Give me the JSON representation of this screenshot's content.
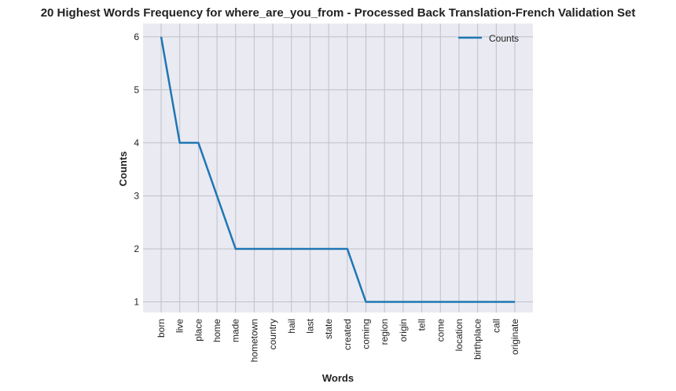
{
  "chart_data": {
    "type": "line",
    "title": "20 Highest Words Frequency for where_are_you_from - Processed Back Translation-French Validation Set",
    "xlabel": "Words",
    "ylabel": "Counts",
    "categories": [
      "born",
      "live",
      "place",
      "home",
      "made",
      "hometown",
      "country",
      "hail",
      "last",
      "state",
      "created",
      "coming",
      "region",
      "origin",
      "tell",
      "come",
      "location",
      "birthplace",
      "call",
      "originate"
    ],
    "series": [
      {
        "name": "Counts",
        "values": [
          6,
          4,
          4,
          3,
          2,
          2,
          2,
          2,
          2,
          2,
          2,
          1,
          1,
          1,
          1,
          1,
          1,
          1,
          1,
          1
        ],
        "color": "#1f77b4"
      }
    ],
    "yticks": [
      1,
      2,
      3,
      4,
      5,
      6
    ],
    "ylim": [
      0.8,
      6.25
    ],
    "grid": true,
    "legend": "top-right",
    "style": {
      "background": "#eaeaf2",
      "grid_color": "#c0c0c8"
    }
  }
}
